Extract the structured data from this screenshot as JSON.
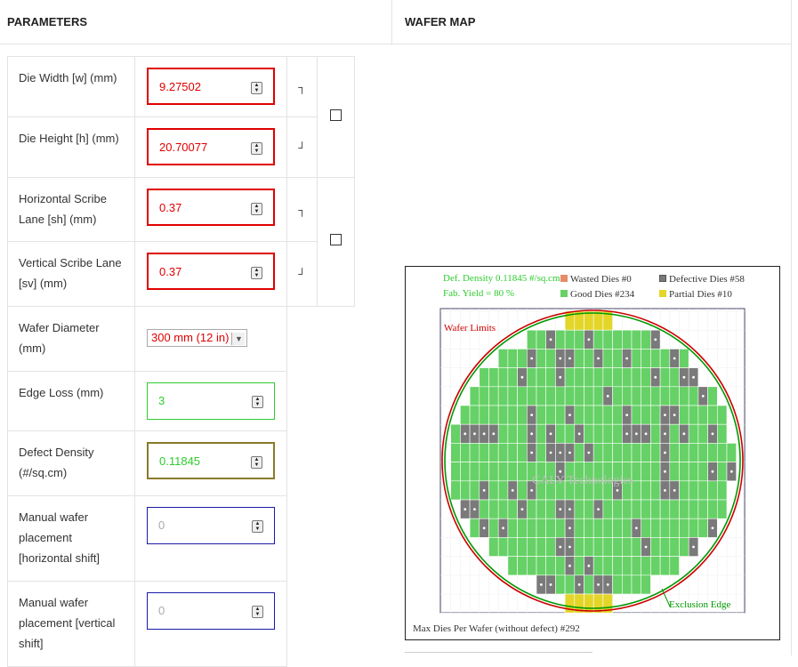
{
  "headers": {
    "parameters": "PARAMETERS",
    "wafer_map": "WAFER MAP"
  },
  "params": {
    "die_width": {
      "label": "Die Width [w] (mm)",
      "value": "9.27502"
    },
    "die_height": {
      "label": "Die Height [h] (mm)",
      "value": "20.70077"
    },
    "h_scribe": {
      "label": "Horizontal Scribe Lane [sh] (mm)",
      "value": "0.37"
    },
    "v_scribe": {
      "label": "Vertical Scribe Lane [sv] (mm)",
      "value": "0.37"
    },
    "wafer_diameter": {
      "label": "Wafer Diameter (mm)",
      "selected": "300 mm (12 in)"
    },
    "edge_loss": {
      "label": "Edge Loss (mm)",
      "value": "3"
    },
    "defect_density": {
      "label": "Defect Density (#/sq.cm)",
      "value": "0.11845"
    },
    "h_shift": {
      "label": "Manual wafer placement [horizontal shift]",
      "placeholder": "0"
    },
    "v_shift": {
      "label": "Manual wafer placement [vertical shift]",
      "placeholder": "0"
    },
    "bracket_top": "┐",
    "bracket_bottom": "┘"
  },
  "wafer_map": {
    "def_density": "Def. Density 0.11845 #/sq.cm",
    "fab_yield": "Fab. Yield = 80 %",
    "wasted": "Wasted Dies  #0",
    "defective": "Defective Dies  #58",
    "good": "Good Dies #234",
    "partial": "Partial Dies #10",
    "wafer_limits": "Wafer Limits",
    "exclusion_edge": "Exclusion Edge",
    "watermark": "CALY Technologies",
    "max_dies": "Max Dies Per Wafer (without defect) #292",
    "colors": {
      "good": "#66d166",
      "defective": "#7a7a7a",
      "partial": "#e3d629",
      "wasted": "#e88a6a",
      "wafer_limit": "#cc0000",
      "exclusion": "#009900"
    }
  }
}
